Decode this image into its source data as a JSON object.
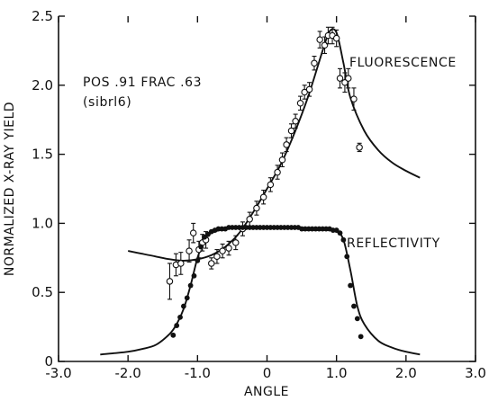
{
  "chart_data": {
    "type": "scatter",
    "xlabel": "ANGLE",
    "ylabel": "NORMALIZED X-RAY YIELD",
    "xlim": [
      -3.0,
      3.0
    ],
    "ylim": [
      0,
      2.5
    ],
    "x_ticks": [
      "-3.0",
      "-2.0",
      "-1.0",
      "0",
      "1.0",
      "2.0",
      "3.0"
    ],
    "y_ticks": [
      "0",
      "0.5",
      "1.0",
      "1.5",
      "2.0",
      "2.5"
    ],
    "x_tick_values": [
      -3,
      -2,
      -1,
      0,
      1,
      2,
      3
    ],
    "y_tick_values": [
      0,
      0.5,
      1.0,
      1.5,
      2.0,
      2.5
    ],
    "grid": false,
    "annotations": {
      "info_line1": "POS .91 FRAC .63",
      "info_line2": "(sibrl6)",
      "fluorescence_label": "FLUORESCENCE",
      "reflectivity_label": "REFLECTIVITY"
    },
    "series": [
      {
        "name": "FLUORESCENCE",
        "marker": "open-circle-errorbar",
        "points": [
          {
            "x": -1.4,
            "y": 0.58,
            "err": 0.13
          },
          {
            "x": -1.31,
            "y": 0.7,
            "err": 0.08
          },
          {
            "x": -1.24,
            "y": 0.71,
            "err": 0.08
          },
          {
            "x": -1.12,
            "y": 0.8,
            "err": 0.08
          },
          {
            "x": -1.06,
            "y": 0.93,
            "err": 0.07
          },
          {
            "x": -0.98,
            "y": 0.81,
            "err": 0.06
          },
          {
            "x": -0.93,
            "y": 0.86,
            "err": 0.06
          },
          {
            "x": -0.88,
            "y": 0.88,
            "err": 0.06
          },
          {
            "x": -0.8,
            "y": 0.71,
            "err": 0.04
          },
          {
            "x": -0.72,
            "y": 0.76,
            "err": 0.05
          },
          {
            "x": -0.64,
            "y": 0.8,
            "err": 0.05
          },
          {
            "x": -0.55,
            "y": 0.82,
            "err": 0.05
          },
          {
            "x": -0.45,
            "y": 0.86,
            "err": 0.05
          },
          {
            "x": -0.35,
            "y": 0.96,
            "err": 0.05
          },
          {
            "x": -0.25,
            "y": 1.03,
            "err": 0.05
          },
          {
            "x": -0.15,
            "y": 1.11,
            "err": 0.05
          },
          {
            "x": -0.05,
            "y": 1.19,
            "err": 0.05
          },
          {
            "x": 0.05,
            "y": 1.28,
            "err": 0.05
          },
          {
            "x": 0.15,
            "y": 1.37,
            "err": 0.05
          },
          {
            "x": 0.22,
            "y": 1.46,
            "err": 0.05
          },
          {
            "x": 0.28,
            "y": 1.57,
            "err": 0.05
          },
          {
            "x": 0.35,
            "y": 1.67,
            "err": 0.05
          },
          {
            "x": 0.41,
            "y": 1.74,
            "err": 0.05
          },
          {
            "x": 0.48,
            "y": 1.87,
            "err": 0.05
          },
          {
            "x": 0.54,
            "y": 1.95,
            "err": 0.05
          },
          {
            "x": 0.61,
            "y": 1.97,
            "err": 0.05
          },
          {
            "x": 0.68,
            "y": 2.16,
            "err": 0.05
          },
          {
            "x": 0.76,
            "y": 2.33,
            "err": 0.06
          },
          {
            "x": 0.83,
            "y": 2.29,
            "err": 0.06
          },
          {
            "x": 0.88,
            "y": 2.36,
            "err": 0.06
          },
          {
            "x": 0.94,
            "y": 2.36,
            "err": 0.06
          },
          {
            "x": 1.0,
            "y": 2.34,
            "err": 0.06
          },
          {
            "x": 1.05,
            "y": 2.05,
            "err": 0.07
          },
          {
            "x": 1.12,
            "y": 2.02,
            "err": 0.07
          },
          {
            "x": 1.17,
            "y": 2.05,
            "err": 0.07
          },
          {
            "x": 1.25,
            "y": 1.9,
            "err": 0.08
          },
          {
            "x": 1.33,
            "y": 1.55,
            "err": 0.03
          }
        ],
        "fit_curve": {
          "x": [
            -2.0,
            -1.8,
            -1.6,
            -1.4,
            -1.2,
            -1.0,
            -0.8,
            -0.6,
            -0.4,
            -0.2,
            0.0,
            0.2,
            0.4,
            0.6,
            0.8,
            0.9,
            1.0,
            1.1,
            1.2,
            1.4,
            1.6,
            1.8,
            2.0,
            2.2
          ],
          "y": [
            0.8,
            0.78,
            0.76,
            0.74,
            0.73,
            0.74,
            0.77,
            0.83,
            0.93,
            1.08,
            1.25,
            1.43,
            1.66,
            1.93,
            2.25,
            2.39,
            2.38,
            2.16,
            1.91,
            1.67,
            1.53,
            1.44,
            1.38,
            1.33
          ]
        }
      },
      {
        "name": "REFLECTIVITY",
        "marker": "filled-circle",
        "points": [
          {
            "x": -1.35,
            "y": 0.19
          },
          {
            "x": -1.3,
            "y": 0.26
          },
          {
            "x": -1.25,
            "y": 0.32
          },
          {
            "x": -1.2,
            "y": 0.4
          },
          {
            "x": -1.15,
            "y": 0.46
          },
          {
            "x": -1.1,
            "y": 0.55
          },
          {
            "x": -1.05,
            "y": 0.62
          },
          {
            "x": -1.0,
            "y": 0.73
          },
          {
            "x": -0.95,
            "y": 0.83
          },
          {
            "x": -0.9,
            "y": 0.9
          },
          {
            "x": -0.85,
            "y": 0.92
          },
          {
            "x": -0.8,
            "y": 0.94
          },
          {
            "x": -0.75,
            "y": 0.95
          },
          {
            "x": -0.7,
            "y": 0.96
          },
          {
            "x": -0.65,
            "y": 0.96
          },
          {
            "x": -0.6,
            "y": 0.96
          },
          {
            "x": -0.55,
            "y": 0.97
          },
          {
            "x": -0.5,
            "y": 0.97
          },
          {
            "x": -0.45,
            "y": 0.97
          },
          {
            "x": -0.4,
            "y": 0.97
          },
          {
            "x": -0.35,
            "y": 0.97
          },
          {
            "x": -0.3,
            "y": 0.97
          },
          {
            "x": -0.25,
            "y": 0.97
          },
          {
            "x": -0.2,
            "y": 0.97
          },
          {
            "x": -0.15,
            "y": 0.97
          },
          {
            "x": -0.1,
            "y": 0.97
          },
          {
            "x": -0.05,
            "y": 0.97
          },
          {
            "x": 0.0,
            "y": 0.97
          },
          {
            "x": 0.05,
            "y": 0.97
          },
          {
            "x": 0.1,
            "y": 0.97
          },
          {
            "x": 0.15,
            "y": 0.97
          },
          {
            "x": 0.2,
            "y": 0.97
          },
          {
            "x": 0.25,
            "y": 0.97
          },
          {
            "x": 0.3,
            "y": 0.97
          },
          {
            "x": 0.35,
            "y": 0.97
          },
          {
            "x": 0.4,
            "y": 0.97
          },
          {
            "x": 0.45,
            "y": 0.97
          },
          {
            "x": 0.5,
            "y": 0.96
          },
          {
            "x": 0.55,
            "y": 0.96
          },
          {
            "x": 0.6,
            "y": 0.96
          },
          {
            "x": 0.65,
            "y": 0.96
          },
          {
            "x": 0.7,
            "y": 0.96
          },
          {
            "x": 0.75,
            "y": 0.96
          },
          {
            "x": 0.8,
            "y": 0.96
          },
          {
            "x": 0.85,
            "y": 0.96
          },
          {
            "x": 0.9,
            "y": 0.96
          },
          {
            "x": 0.95,
            "y": 0.95
          },
          {
            "x": 1.0,
            "y": 0.95
          },
          {
            "x": 1.05,
            "y": 0.93
          },
          {
            "x": 1.1,
            "y": 0.88
          },
          {
            "x": 1.15,
            "y": 0.76
          },
          {
            "x": 1.2,
            "y": 0.55
          },
          {
            "x": 1.25,
            "y": 0.4
          },
          {
            "x": 1.3,
            "y": 0.31
          },
          {
            "x": 1.35,
            "y": 0.18
          }
        ],
        "fit_curve": {
          "x": [
            -2.4,
            -2.2,
            -2.0,
            -1.8,
            -1.6,
            -1.4,
            -1.3,
            -1.2,
            -1.1,
            -1.0,
            -0.9,
            -0.8,
            -0.6,
            -0.4,
            0.0,
            0.4,
            0.8,
            1.0,
            1.1,
            1.2,
            1.3,
            1.4,
            1.6,
            1.8,
            2.0,
            2.2
          ],
          "y": [
            0.05,
            0.06,
            0.07,
            0.09,
            0.12,
            0.2,
            0.27,
            0.38,
            0.55,
            0.75,
            0.88,
            0.93,
            0.96,
            0.97,
            0.97,
            0.97,
            0.96,
            0.94,
            0.88,
            0.66,
            0.4,
            0.27,
            0.15,
            0.1,
            0.07,
            0.05
          ]
        }
      }
    ]
  }
}
